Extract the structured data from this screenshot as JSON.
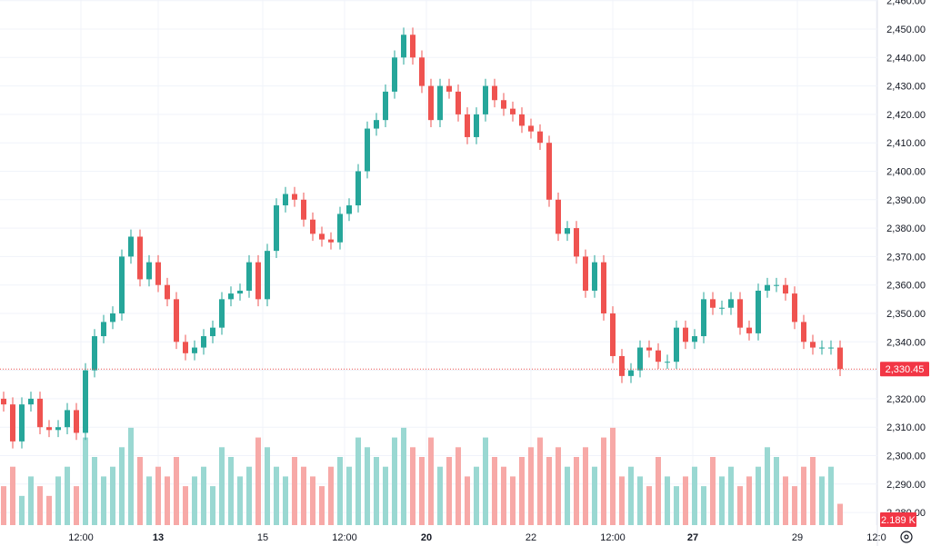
{
  "chart_data": {
    "type": "candlestick",
    "title": "",
    "price_axis": {
      "ticks": [
        2280,
        2290,
        2300,
        2310,
        2320,
        2330,
        2340,
        2350,
        2360,
        2370,
        2380,
        2390,
        2400,
        2410,
        2420,
        2430,
        2440,
        2450,
        2460
      ],
      "tick_labels": [
        "2,280.00",
        "2,290.00",
        "2,300.00",
        "2,310.00",
        "2,320.00",
        "",
        "2,340.00",
        "2,350.00",
        "2,360.00",
        "2,370.00",
        "2,380.00",
        "2,390.00",
        "2,400.00",
        "2,410.00",
        "2,420.00",
        "2,430.00",
        "2,440.00",
        "2,450.00",
        "2,460.00"
      ],
      "range": [
        2279,
        2460
      ]
    },
    "time_axis": {
      "ticks": [
        {
          "bar": 8.5,
          "label": "12:00",
          "bold": false
        },
        {
          "bar": 17,
          "label": "13",
          "bold": true
        },
        {
          "bar": 28.5,
          "label": "15",
          "bold": false
        },
        {
          "bar": 37.5,
          "label": "12:00",
          "bold": false
        },
        {
          "bar": 46.5,
          "label": "20",
          "bold": true
        },
        {
          "bar": 58,
          "label": "22",
          "bold": false
        },
        {
          "bar": 67,
          "label": "12:00",
          "bold": false
        },
        {
          "bar": 75.8,
          "label": "27",
          "bold": true
        },
        {
          "bar": 87.3,
          "label": "29",
          "bold": false
        },
        {
          "bar": 96,
          "label": "12:0",
          "bold": false
        }
      ]
    },
    "first_open": 2320,
    "closes": [
      2318,
      2305,
      2318,
      2320,
      2310,
      2309,
      2310,
      2316,
      2308,
      2330,
      2342,
      2347,
      2350,
      2370,
      2377,
      2362,
      2368,
      2360,
      2355,
      2340,
      2336,
      2338,
      2342,
      2345,
      2355,
      2357,
      2358,
      2368,
      2355,
      2372,
      2388,
      2392,
      2390,
      2383,
      2378,
      2376,
      2375,
      2385,
      2388,
      2400,
      2415,
      2418,
      2428,
      2440,
      2448,
      2440,
      2430,
      2418,
      2430,
      2428,
      2420,
      2412,
      2420,
      2430,
      2425,
      2422,
      2420,
      2416,
      2414,
      2410,
      2390,
      2378,
      2380,
      2370,
      2358,
      2368,
      2350,
      2335,
      2328,
      2330,
      2338,
      2337,
      2333,
      2333,
      2345,
      2340,
      2342,
      2355,
      2352,
      2352,
      2355,
      2345,
      2343,
      2358,
      2360,
      2360,
      2357,
      2347,
      2340,
      2338,
      2338,
      2338,
      2330.45
    ],
    "volumes_k": [
      4,
      6,
      3,
      5,
      4,
      3,
      5,
      6,
      4,
      9,
      7,
      5,
      6,
      8,
      10,
      7,
      5,
      6,
      5,
      7,
      4,
      5,
      6,
      4,
      8,
      7,
      5,
      6,
      9,
      8,
      6,
      5,
      7,
      6,
      5,
      4,
      6,
      7,
      6,
      9,
      8,
      7,
      6,
      9,
      10,
      8,
      7,
      9,
      6,
      7,
      8,
      5,
      6,
      9,
      7,
      6,
      5,
      7,
      8,
      9,
      7,
      8,
      6,
      7,
      8,
      6,
      9,
      10,
      5,
      6,
      5,
      4,
      7,
      5,
      4,
      5,
      6,
      4,
      7,
      5,
      6,
      4,
      5,
      6,
      8,
      7,
      5,
      4,
      6,
      7,
      5,
      6,
      2.189
    ],
    "volume_range": [
      0,
      14
    ],
    "colors": {
      "up": "#26a69a",
      "down": "#ef5350",
      "up_volume": "#9ad8d2",
      "down_volume": "#f7a9a7",
      "grid": "#f0f3fa"
    },
    "last_price": {
      "value": 2330.45,
      "label": "2,330.45"
    },
    "last_volume": {
      "label": "2.189 K"
    },
    "settings_icon": "settings-icon"
  }
}
